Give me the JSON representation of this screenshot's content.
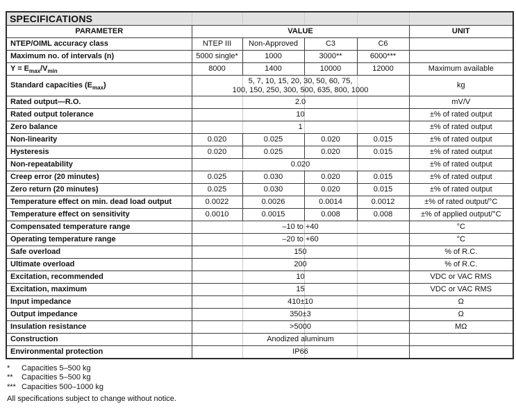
{
  "title": "SPECIFICATIONS",
  "columns": {
    "parameter": "PARAMETER",
    "value": "VALUE",
    "unit": "UNIT"
  },
  "table": {
    "rows": [
      {
        "param": "NTEP/OIML accuracy class",
        "values": [
          "NTEP III",
          "Non-Approved",
          "C3",
          "C6"
        ],
        "unit": ""
      },
      {
        "param": "Maximum no. of intervals (n)",
        "values": [
          "5000 single*",
          "1000",
          "3000**",
          "6000***"
        ],
        "unit": ""
      },
      {
        "param_parts": [
          {
            "t": "Y = E"
          },
          {
            "t": "max",
            "sub": true
          },
          {
            "t": "/V"
          },
          {
            "t": "min",
            "sub": true
          }
        ],
        "values": [
          "8000",
          "1400",
          "10000",
          "12000"
        ],
        "unit": "Maximum available"
      },
      {
        "param_parts": [
          {
            "t": "Standard capacities (E"
          },
          {
            "t": "max",
            "sub": true
          },
          {
            "t": ")"
          }
        ],
        "span": "5, 7, 10, 15, 20, 30, 50, 60, 75,\n100, 150, 250, 300, 500, 635, 800, 1000",
        "unit": "kg",
        "tall": true
      },
      {
        "param": "Rated output—R.O.",
        "span": "2.0",
        "unit": "mV/V"
      },
      {
        "param": "Rated output tolerance",
        "span": "10",
        "unit": "±% of rated output"
      },
      {
        "param": "Zero balance",
        "span": "1",
        "unit": "±% of rated output"
      },
      {
        "param": "Non-linearity",
        "values": [
          "0.020",
          "0.025",
          "0.020",
          "0.015"
        ],
        "unit": "±% of rated output"
      },
      {
        "param": "Hysteresis",
        "values": [
          "0.020",
          "0.025",
          "0.020",
          "0.015"
        ],
        "unit": "±% of rated output"
      },
      {
        "param": "Non-repeatability",
        "span": "0.020",
        "unit": "±% of rated output"
      },
      {
        "param": "Creep error (20 minutes)",
        "values": [
          "0.025",
          "0.030",
          "0.020",
          "0.015"
        ],
        "unit": "±% of rated output"
      },
      {
        "param": "Zero return (20 minutes)",
        "values": [
          "0.025",
          "0.030",
          "0.020",
          "0.015"
        ],
        "unit": "±% of rated output"
      },
      {
        "param": "Temperature effect on min. dead load output",
        "values": [
          "0.0022",
          "0.0026",
          "0.0014",
          "0.0012"
        ],
        "unit": "±% of rated output/°C"
      },
      {
        "param": "Temperature effect on sensitivity",
        "values": [
          "0.0010",
          "0.0015",
          "0.008",
          "0.008"
        ],
        "unit": "±% of applied output/°C"
      },
      {
        "param": "Compensated temperature range",
        "span": "–10 to +40",
        "unit": "°C"
      },
      {
        "param": "Operating temperature range",
        "span": "–20 to +60",
        "unit": "°C"
      },
      {
        "param": "Safe overload",
        "span": "150",
        "unit": "% of R.C."
      },
      {
        "param": "Ultimate overload",
        "span": "200",
        "unit": "% of R.C."
      },
      {
        "param": "Excitation, recommended",
        "span": "10",
        "unit": "VDC or VAC RMS"
      },
      {
        "param": "Excitation, maximum",
        "span": "15",
        "unit": "VDC or VAC RMS"
      },
      {
        "param": "Input impedance",
        "span": "410±10",
        "unit": "Ω"
      },
      {
        "param": "Output impedance",
        "span": "350±3",
        "unit": "Ω"
      },
      {
        "param": "Insulation resistance",
        "span": ">5000",
        "unit": "MΩ"
      },
      {
        "param": "Construction",
        "span": "Anodized aluminum",
        "unit": ""
      },
      {
        "param": "Environmental protection",
        "span": "IP66",
        "unit": ""
      }
    ]
  },
  "footnotes": [
    {
      "marker": "*",
      "text": "Capacities 5–500 kg"
    },
    {
      "marker": "**",
      "text": "Capacities 5–500 kg"
    },
    {
      "marker": "***",
      "text": "Capacities 500–1000 kg"
    }
  ],
  "disclaimer": "All specifications subject to change without notice.",
  "colors": {
    "title_bg": "#e2e2e2",
    "border": "#3d3d3d",
    "text": "#111111"
  }
}
